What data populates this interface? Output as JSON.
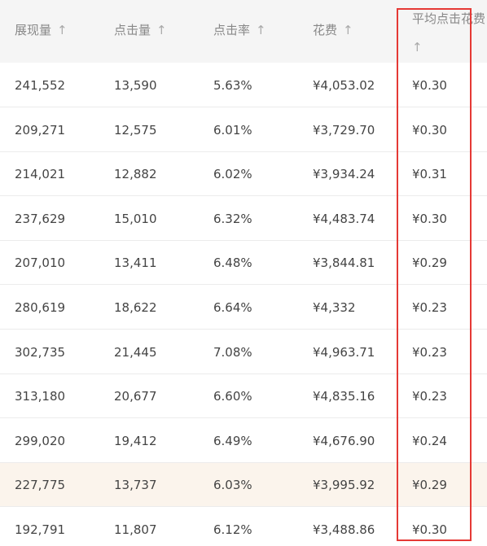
{
  "table": {
    "columns": [
      {
        "label": "展现量",
        "sort_icon": "↑"
      },
      {
        "label": "点击量",
        "sort_icon": "↑"
      },
      {
        "label": "点击率",
        "sort_icon": "↑"
      },
      {
        "label": "花费",
        "sort_icon": "↑"
      },
      {
        "label": "平均点击花费",
        "sort_icon": "↑"
      }
    ],
    "rows": [
      [
        "241,552",
        "13,590",
        "5.63%",
        "¥4,053.02",
        "¥0.30"
      ],
      [
        "209,271",
        "12,575",
        "6.01%",
        "¥3,729.70",
        "¥0.30"
      ],
      [
        "214,021",
        "12,882",
        "6.02%",
        "¥3,934.24",
        "¥0.31"
      ],
      [
        "237,629",
        "15,010",
        "6.32%",
        "¥4,483.74",
        "¥0.30"
      ],
      [
        "207,010",
        "13,411",
        "6.48%",
        "¥3,844.81",
        "¥0.29"
      ],
      [
        "280,619",
        "18,622",
        "6.64%",
        "¥4,332",
        "¥0.23"
      ],
      [
        "302,735",
        "21,445",
        "7.08%",
        "¥4,963.71",
        "¥0.23"
      ],
      [
        "313,180",
        "20,677",
        "6.60%",
        "¥4,835.16",
        "¥0.23"
      ],
      [
        "299,020",
        "19,412",
        "6.49%",
        "¥4,676.90",
        "¥0.24"
      ],
      [
        "227,775",
        "13,737",
        "6.03%",
        "¥3,995.92",
        "¥0.29"
      ],
      [
        "192,791",
        "11,807",
        "6.12%",
        "¥3,488.86",
        "¥0.30"
      ]
    ],
    "highlighted_row_index": 9,
    "highlight_color": "#fbf4ec",
    "annotation_box_color": "#e53935"
  }
}
